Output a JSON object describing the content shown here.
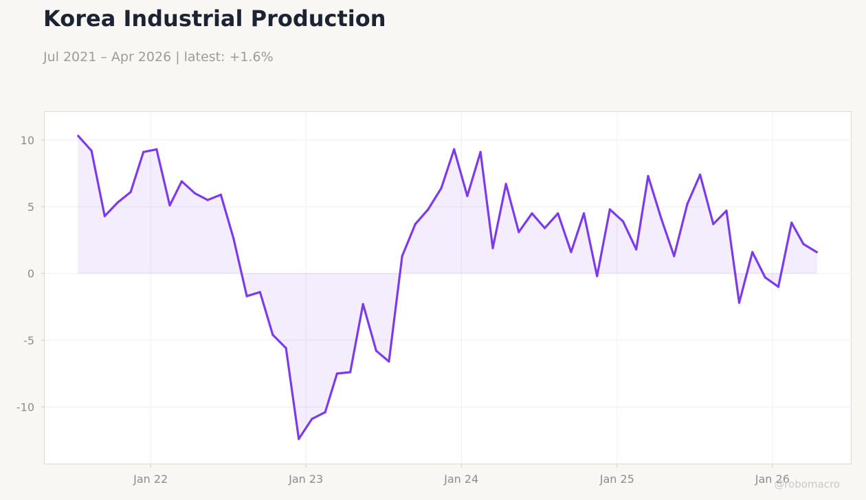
{
  "header": {
    "title": "Korea Industrial Production",
    "subtitle": "Jul 2021 – Apr 2026 | latest: +1.6%"
  },
  "watermark": "@robomacro",
  "colors": {
    "background": "#f8f7f4",
    "line": "#7c3aed",
    "fill": "#ede6fb",
    "title": "#1c2333"
  },
  "chart_data": {
    "type": "area",
    "title": "Korea Industrial Production",
    "subtitle": "Jul 2021 – Apr 2026 | latest: +1.6%",
    "xlabel": "",
    "ylabel": "",
    "ylim": [
      -14.3,
      12.1
    ],
    "xlim": [
      "2021-04-27",
      "2026-07-06"
    ],
    "grid": true,
    "y_ticks": [
      10,
      5,
      0,
      -5,
      -10
    ],
    "y_tick_labels": [
      "10",
      "5",
      "0",
      "-5",
      "-10"
    ],
    "x_ticks": [
      "2022-01-01",
      "2023-01-01",
      "2024-01-01",
      "2025-01-01",
      "2026-01-01"
    ],
    "x_tick_labels": [
      "Jan 22",
      "Jan 23",
      "Jan 24",
      "Jan 25",
      "Jan 26"
    ],
    "series": [
      {
        "x": [
          "2021-07",
          "2021-08",
          "2021-09",
          "2021-10",
          "2021-11",
          "2021-12",
          "2022-01",
          "2022-02",
          "2022-03",
          "2022-04",
          "2022-05",
          "2022-06",
          "2022-07",
          "2022-08",
          "2022-09",
          "2022-10",
          "2022-11",
          "2022-12",
          "2023-01",
          "2023-02",
          "2023-03",
          "2023-04",
          "2023-05",
          "2023-06",
          "2023-07",
          "2023-08",
          "2023-09",
          "2023-10",
          "2023-11",
          "2023-12",
          "2024-01",
          "2024-02",
          "2024-03",
          "2024-04",
          "2024-05",
          "2024-06",
          "2024-07",
          "2024-08",
          "2024-09",
          "2024-10",
          "2024-11",
          "2024-12",
          "2025-01",
          "2025-02",
          "2025-03",
          "2025-04",
          "2025-05",
          "2025-06",
          "2025-07",
          "2025-08",
          "2025-09",
          "2025-10",
          "2025-11",
          "2025-12",
          "2026-01",
          "2026-02",
          "2026-03",
          "2026-04"
        ],
        "values": [
          10.3,
          9.2,
          4.3,
          5.3,
          6.1,
          9.1,
          9.3,
          5.1,
          6.9,
          6.0,
          5.5,
          5.9,
          2.6,
          -1.7,
          -1.4,
          -4.6,
          -5.6,
          -12.4,
          -10.9,
          -10.4,
          -7.5,
          -7.4,
          -2.3,
          -5.8,
          -6.6,
          1.3,
          3.7,
          4.8,
          6.4,
          9.3,
          5.8,
          9.1,
          1.9,
          6.7,
          3.1,
          4.5,
          3.4,
          4.5,
          1.6,
          4.5,
          -0.2,
          4.8,
          3.9,
          1.8,
          7.3,
          4.1,
          1.3,
          5.2,
          7.4,
          3.7,
          4.7,
          -2.2,
          1.6,
          -0.3,
          -1.0,
          3.8,
          2.2,
          1.6
        ]
      }
    ]
  }
}
